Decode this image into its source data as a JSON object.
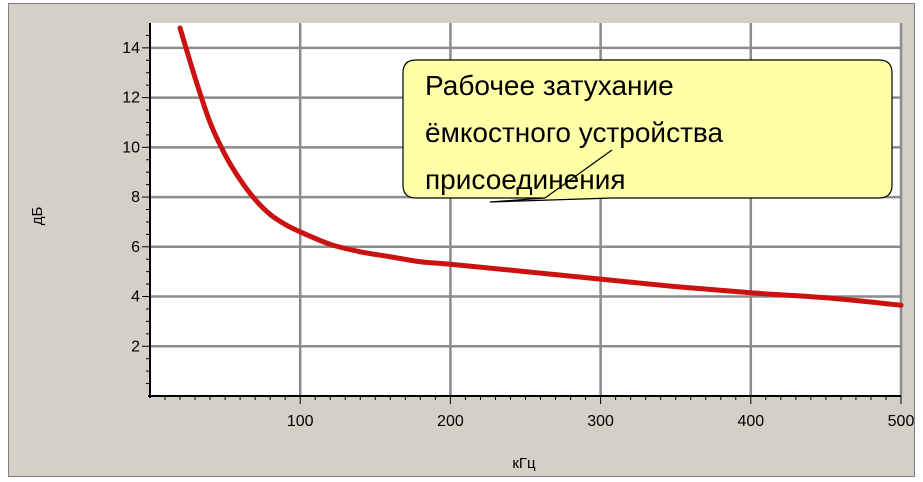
{
  "chart_data": {
    "type": "line",
    "title": "",
    "xlabel": "кГц",
    "ylabel": "дБ",
    "xlim": [
      0,
      500
    ],
    "ylim": [
      0,
      15
    ],
    "xticks": [
      100,
      200,
      300,
      400,
      500
    ],
    "yticks": [
      2,
      4,
      6,
      8,
      10,
      12,
      14
    ],
    "x_tick_labels": [
      "100",
      "200",
      "300",
      "400",
      "500"
    ],
    "y_tick_labels": [
      "2",
      "4",
      "6",
      "8",
      "10",
      "12",
      "14"
    ],
    "grid": true,
    "series": [
      {
        "color": "#cc1111",
        "x": [
          20,
          30,
          40,
          50,
          60,
          70,
          80,
          90,
          100,
          120,
          140,
          160,
          180,
          200,
          250,
          300,
          350,
          400,
          450,
          500
        ],
        "y": [
          14.8,
          12.8,
          11.0,
          9.7,
          8.7,
          7.9,
          7.3,
          6.9,
          6.6,
          6.1,
          5.8,
          5.6,
          5.4,
          5.3,
          5.0,
          4.7,
          4.4,
          4.15,
          3.95,
          3.65
        ]
      }
    ],
    "annotation": {
      "lines": [
        "Рабочее затухание",
        "ёмкостного устройства",
        "присоединения"
      ],
      "background": "#ffffa8"
    }
  }
}
